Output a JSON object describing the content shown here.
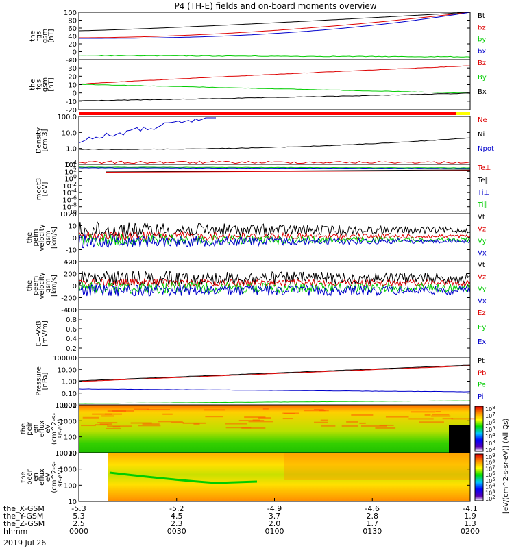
{
  "title": "P4 (TH-E) fields and on-board moments overview",
  "date_label": "2019 Jul 26",
  "colors": {
    "black": "#000000",
    "red": "#dd0000",
    "green": "#00cc00",
    "blue": "#0000cc",
    "yellowbar": "#ffff00",
    "redbar": "#ff0000"
  },
  "chart_data": [
    {
      "type": "line",
      "ylabel": [
        "the",
        "fgs",
        "gsm",
        "[nT]"
      ],
      "yticks": [
        "100",
        "80",
        "60",
        "40",
        "20",
        "0",
        "-20"
      ],
      "legend": [
        {
          "name": "Bt",
          "color": "black"
        },
        {
          "name": "bz",
          "color": "red"
        },
        {
          "name": "by",
          "color": "green"
        },
        {
          "name": "bx",
          "color": "blue"
        }
      ],
      "ylim": [
        -20,
        100
      ],
      "series": [
        {
          "name": "Bt",
          "start": 55,
          "end": 100
        },
        {
          "name": "bz",
          "start": 36,
          "end": 100
        },
        {
          "name": "by",
          "start": -3,
          "end": -14
        },
        {
          "name": "bx",
          "start": 32,
          "end": 100
        }
      ]
    },
    {
      "type": "line",
      "ylabel": [
        "the",
        "fgs",
        "gsm",
        "[nT]"
      ],
      "yticks": [
        "40",
        "30",
        "20",
        "10",
        "0",
        "-10",
        "-20"
      ],
      "legend": [
        {
          "name": "Bz",
          "color": "red"
        },
        {
          "name": "By",
          "color": "green"
        },
        {
          "name": "Bx",
          "color": "black"
        }
      ],
      "ylim": [
        -20,
        40
      ],
      "series": [
        {
          "name": "Bz",
          "start": 10,
          "end": 33
        },
        {
          "name": "By",
          "start": 10,
          "end": -3
        },
        {
          "name": "Bx",
          "start": -10,
          "end": -2
        }
      ]
    },
    {
      "type": "line",
      "ylabel": [
        "Density",
        "[cm-3]"
      ],
      "yticks": [
        "100.0",
        "10.0",
        "1.0",
        "0.1"
      ],
      "legend": [
        {
          "name": "Ne",
          "color": "red"
        },
        {
          "name": "Ni",
          "color": "black"
        },
        {
          "name": "Npot",
          "color": "blue"
        }
      ],
      "ylim": [
        0.1,
        200
      ],
      "scale": "log"
    },
    {
      "type": "line",
      "ylabel": [
        "moqt3",
        "[eV]"
      ],
      "yticks": [
        "10^4",
        "10^2",
        "10^0",
        "10^-2",
        "10^-4",
        "10^-6",
        "10^-8",
        "10^-10"
      ],
      "legend": [
        {
          "name": "Te⊥",
          "color": "red"
        },
        {
          "name": "Te∥",
          "color": "black"
        },
        {
          "name": "Ti⊥",
          "color": "blue"
        },
        {
          "name": "Ti∥",
          "color": "green"
        }
      ],
      "scale": "log"
    },
    {
      "type": "line",
      "ylabel": [
        "the",
        "peim",
        "velocity",
        "gsm",
        "[km/s]"
      ],
      "yticks": [
        "20",
        "10",
        "0",
        "-10",
        "-20"
      ],
      "legend": [
        {
          "name": "Vt",
          "color": "black"
        },
        {
          "name": "Vz",
          "color": "red"
        },
        {
          "name": "Vy",
          "color": "green"
        },
        {
          "name": "Vx",
          "color": "blue"
        }
      ],
      "ylim": [
        -20,
        20
      ]
    },
    {
      "type": "line",
      "ylabel": [
        "the",
        "peem",
        "velocity",
        "gsm",
        "[km/s]"
      ],
      "yticks": [
        "400",
        "200",
        "0",
        "-200",
        "-400"
      ],
      "legend": [
        {
          "name": "Vt",
          "color": "black"
        },
        {
          "name": "Vz",
          "color": "red"
        },
        {
          "name": "Vy",
          "color": "green"
        },
        {
          "name": "Vx",
          "color": "blue"
        }
      ],
      "ylim": [
        -400,
        400
      ]
    },
    {
      "type": "line",
      "ylabel": [
        "E=-VxB",
        "[mV/m]"
      ],
      "yticks": [
        "1.0",
        "0.8",
        "0.6",
        "0.4",
        "0.2",
        "0.0"
      ],
      "legend": [
        {
          "name": "Ez",
          "color": "red"
        },
        {
          "name": "Ey",
          "color": "green"
        },
        {
          "name": "Ex",
          "color": "blue"
        }
      ],
      "ylim": [
        0,
        1
      ]
    },
    {
      "type": "line",
      "ylabel": [
        "Pressure",
        "[nPa]"
      ],
      "yticks": [
        "100.00",
        "10.00",
        "1.00",
        "0.10",
        "0.01"
      ],
      "legend": [
        {
          "name": "Pt",
          "color": "black"
        },
        {
          "name": "Pb",
          "color": "red"
        },
        {
          "name": "Pe",
          "color": "green"
        },
        {
          "name": "Pi",
          "color": "blue"
        }
      ],
      "ylim": [
        0.01,
        100
      ],
      "scale": "log"
    },
    {
      "type": "heatmap",
      "ylabel": [
        "the",
        "peir",
        "en",
        "eflux",
        "eV",
        "(cm^2-s-",
        "sr-eV)"
      ],
      "yticks": [
        "10000",
        "1000",
        "100",
        "10"
      ],
      "colorbar": [
        "10^8",
        "10^7",
        "10^6",
        "10^5",
        "10^4",
        "10^3",
        "10^2"
      ]
    },
    {
      "type": "heatmap",
      "ylabel": [
        "the",
        "peer",
        "en",
        "eflux",
        "eV",
        "(cm^2-s-",
        "sr-eV)"
      ],
      "yticks": [
        "10000",
        "1000",
        "100",
        "10"
      ],
      "colorbar": [
        "10^9",
        "10^8",
        "10^7",
        "10^6",
        "10^5",
        "10^4",
        "10^3",
        "10^2"
      ]
    }
  ],
  "colorbar_label": "[eV/(cm^2-s-sr-eV)] (All Qs)",
  "xaxis": {
    "row_labels": [
      "the_X-GSM",
      "the_Y-GSM",
      "the_Z-GSM",
      "hhmm"
    ],
    "ticks": [
      {
        "x": "-5.3",
        "y": "5.3",
        "z": "2.5",
        "t": "0000"
      },
      {
        "x": "-5.2",
        "y": "4.5",
        "z": "2.3",
        "t": "0030"
      },
      {
        "x": "-4.9",
        "y": "3.7",
        "z": "2.0",
        "t": "0100"
      },
      {
        "x": "-4.6",
        "y": "2.8",
        "z": "1.7",
        "t": "0130"
      },
      {
        "x": "-4.1",
        "y": "1.9",
        "z": "1.3",
        "t": "0200"
      }
    ]
  }
}
